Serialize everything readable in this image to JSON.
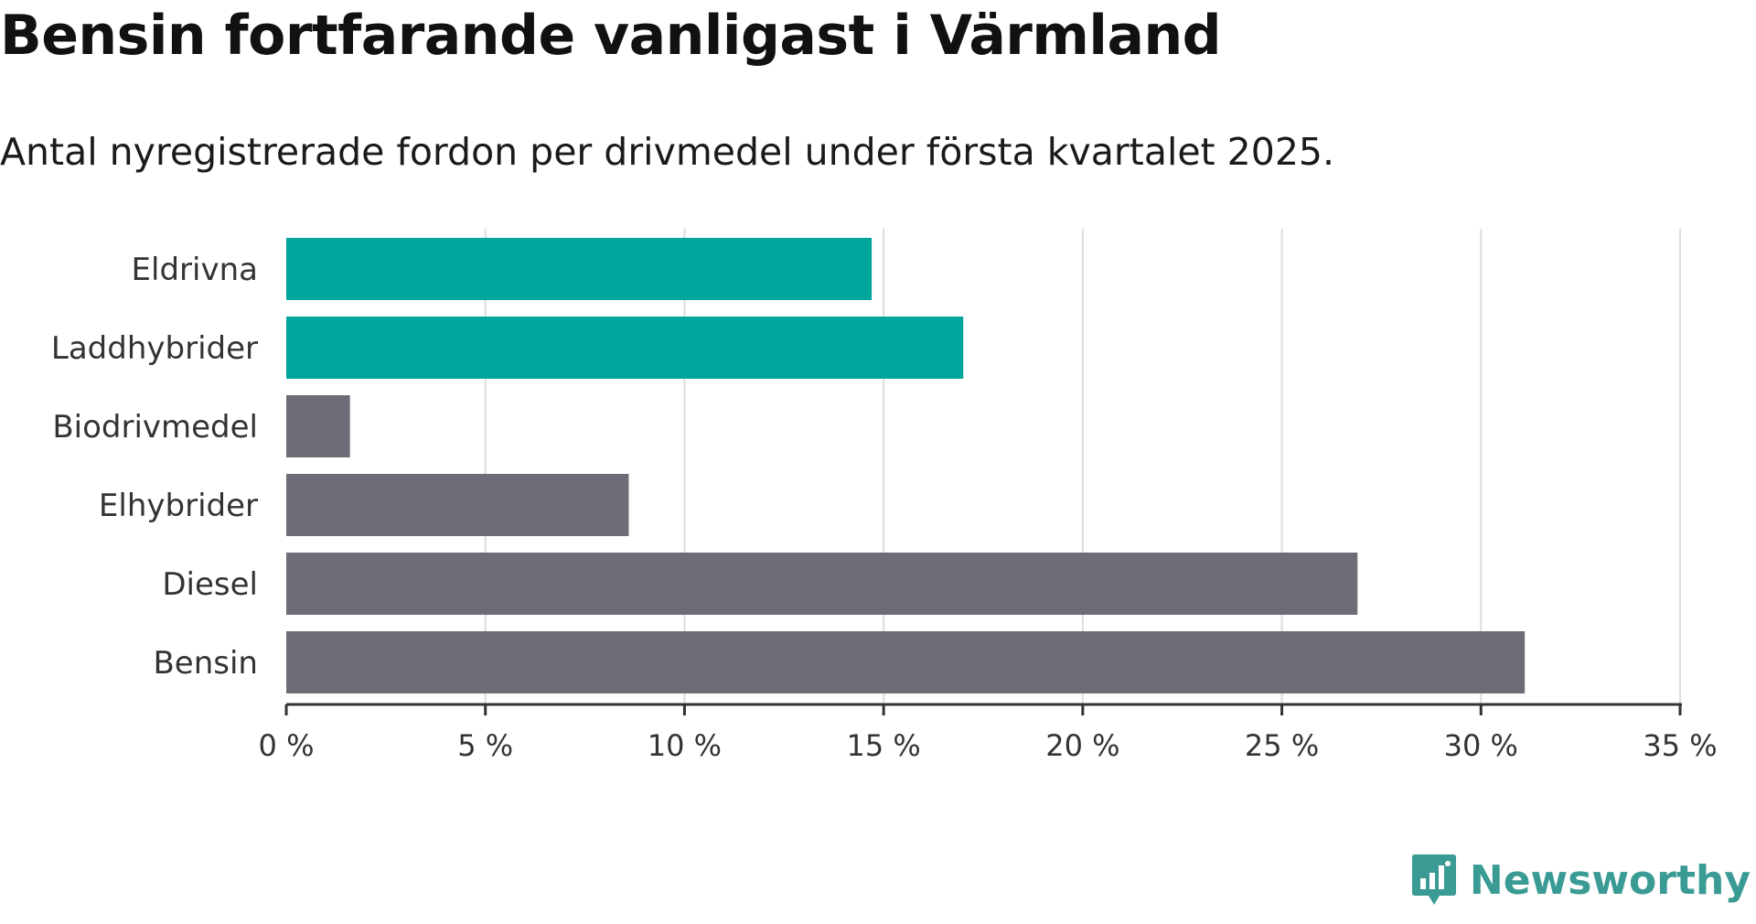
{
  "header": {
    "title": "Bensin fortfarande vanligast i Värmland",
    "subtitle": "Antal nyregistrerade fordon per drivmedel under första kvartalet 2025."
  },
  "brand": {
    "name": "Newsworthy",
    "color": "#3a9a94",
    "icon": "newsworthy-logo-icon"
  },
  "colors": {
    "highlight": "#00A59B",
    "default": "#6E6D77",
    "grid": "#dddddd",
    "axis": "#333333"
  },
  "chart_data": {
    "type": "bar",
    "orientation": "horizontal",
    "title": "Bensin fortfarande vanligast i Värmland",
    "subtitle": "Antal nyregistrerade fordon per drivmedel under första kvartalet 2025.",
    "xlabel": "",
    "ylabel": "",
    "unit": "%",
    "xlim": [
      0,
      35
    ],
    "ticks": [
      0,
      5,
      10,
      15,
      20,
      25,
      30,
      35
    ],
    "tick_labels": [
      "0 %",
      "5 %",
      "10 %",
      "15 %",
      "20 %",
      "25 %",
      "30 %",
      "35 %"
    ],
    "grid": true,
    "legend": "none",
    "categories": [
      "Eldrivna",
      "Laddhybrider",
      "Biodrivmedel",
      "Elhybrider",
      "Diesel",
      "Bensin"
    ],
    "values": [
      14.7,
      17.0,
      1.6,
      8.6,
      26.9,
      31.1
    ],
    "highlighted": [
      true,
      true,
      false,
      false,
      false,
      false
    ]
  }
}
